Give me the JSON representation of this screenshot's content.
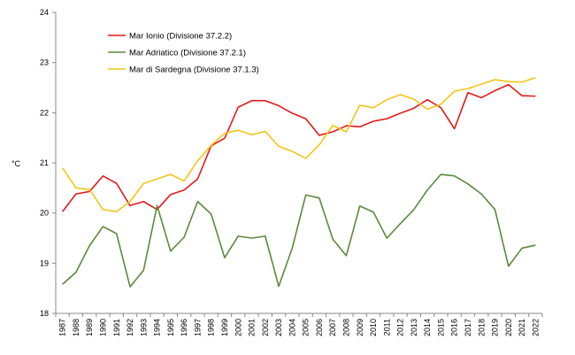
{
  "chart_data": {
    "type": "line",
    "title": "",
    "xlabel": "",
    "ylabel": "°C",
    "ylim": [
      18,
      24
    ],
    "yticks": [
      18,
      19,
      20,
      21,
      22,
      23,
      24
    ],
    "grid": false,
    "legend_position": "top-left",
    "categories": [
      "1987",
      "1988",
      "1989",
      "1990",
      "1991",
      "1992",
      "1993",
      "1994",
      "1995",
      "1996",
      "1997",
      "1998",
      "1999",
      "2000",
      "2001",
      "2002",
      "2003",
      "2004",
      "2005",
      "2006",
      "2007",
      "2008",
      "2009",
      "2010",
      "2011",
      "2012",
      "2013",
      "2014",
      "2015",
      "2016",
      "2017",
      "2018",
      "2019",
      "2020",
      "2021",
      "2022"
    ],
    "series": [
      {
        "name": "Mar Ionio (Divisione 37.2.2)",
        "color": "#e31a1c",
        "values": [
          20.03,
          20.38,
          20.43,
          20.74,
          20.59,
          20.15,
          20.23,
          20.07,
          20.37,
          20.46,
          20.68,
          21.34,
          21.49,
          22.11,
          22.24,
          22.24,
          22.14,
          21.99,
          21.88,
          21.55,
          21.62,
          21.74,
          21.72,
          21.83,
          21.88,
          21.99,
          22.09,
          22.26,
          22.1,
          21.68,
          22.4,
          22.3,
          22.44,
          22.56,
          22.34,
          22.33
        ]
      },
      {
        "name": "Mar Adriatico (Divisione 37.2.1)",
        "color": "#5b8a3c",
        "values": [
          18.58,
          18.82,
          19.35,
          19.73,
          19.59,
          18.53,
          18.86,
          20.15,
          19.24,
          19.52,
          20.23,
          19.98,
          19.11,
          19.54,
          19.5,
          19.54,
          18.54,
          19.3,
          20.36,
          20.3,
          19.48,
          19.15,
          20.14,
          20.02,
          19.5,
          19.79,
          20.07,
          20.46,
          20.77,
          20.74,
          20.58,
          20.38,
          20.07,
          18.94,
          19.3,
          19.36
        ]
      },
      {
        "name": "Mar di Sardegna (Divisione 37.1.3)",
        "color": "#f5c518",
        "values": [
          20.9,
          20.5,
          20.47,
          20.07,
          20.03,
          20.23,
          20.59,
          20.68,
          20.77,
          20.64,
          21.04,
          21.35,
          21.59,
          21.65,
          21.56,
          21.63,
          21.33,
          21.23,
          21.09,
          21.36,
          21.75,
          21.62,
          22.15,
          22.1,
          22.26,
          22.36,
          22.27,
          22.07,
          22.17,
          22.43,
          22.48,
          22.57,
          22.66,
          22.62,
          22.61,
          22.7
        ]
      }
    ]
  }
}
